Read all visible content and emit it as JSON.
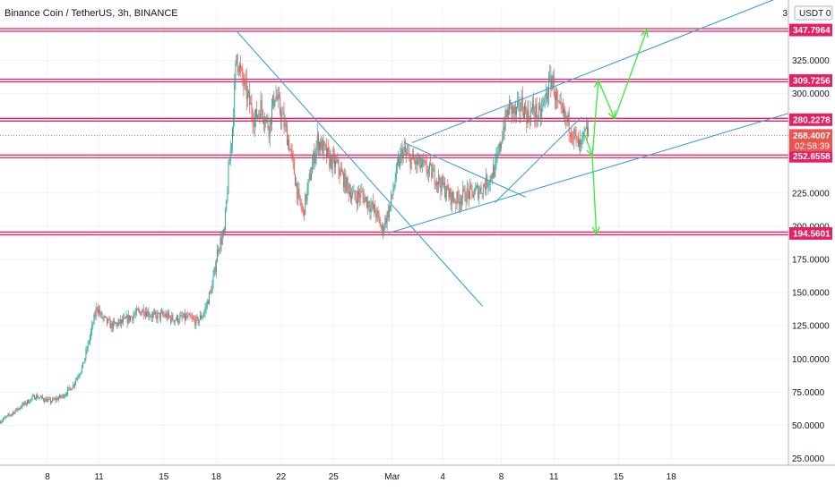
{
  "header": {
    "title": "Binance Coin / TetherUS, 3h, BINANCE",
    "currency": "USDT",
    "currency_sep": "0",
    "corner_tick": "3"
  },
  "colors": {
    "bull": "#26a69a",
    "bear": "#ef5350",
    "level": "#e91e63",
    "trend": "#3ca1d8",
    "projection": "#33ee33",
    "price_label": "#ef5350",
    "grid": "#f0f3fa",
    "axis": "#b2b5be"
  },
  "chart_data": {
    "type": "candlestick",
    "title": "Binance Coin / TetherUS, 3h, BINANCE",
    "ylim": [
      20,
      365
    ],
    "y_ticks": [
      "325.0000",
      "300.0000",
      "225.0000",
      "200.0000",
      "175.0000",
      "150.0000",
      "125.0000",
      "100.0000",
      "75.0000",
      "50.0000",
      "25.0000"
    ],
    "y_tick_values": [
      325,
      300,
      225,
      200,
      175,
      150,
      125,
      100,
      75,
      50,
      25
    ],
    "x_ticks": [
      "8",
      "11",
      "15",
      "18",
      "22",
      "25",
      "Mar",
      "4",
      "8",
      "11",
      "15",
      "18"
    ],
    "x_tick_index": [
      47,
      98,
      162,
      214,
      278,
      330,
      388,
      438,
      496,
      548,
      612,
      664
    ],
    "x_total_bars": 780,
    "last_price": "268.4007",
    "countdown": "02:58:39",
    "levels": [
      {
        "value": 347.7964,
        "label": "347.7964"
      },
      {
        "value": 309.7256,
        "label": "309.7256"
      },
      {
        "value": 280.2278,
        "label": "280.2278"
      },
      {
        "value": 252.6558,
        "label": "252.6558"
      },
      {
        "value": 194.5601,
        "label": "194.5601"
      }
    ],
    "anchors": [
      [
        0,
        53
      ],
      [
        10,
        58
      ],
      [
        22,
        65
      ],
      [
        35,
        72
      ],
      [
        50,
        68
      ],
      [
        62,
        72
      ],
      [
        72,
        80
      ],
      [
        82,
        95
      ],
      [
        90,
        120
      ],
      [
        96,
        140
      ],
      [
        100,
        132
      ],
      [
        110,
        125
      ],
      [
        122,
        128
      ],
      [
        132,
        133
      ],
      [
        142,
        137
      ],
      [
        152,
        132
      ],
      [
        162,
        133
      ],
      [
        172,
        130
      ],
      [
        185,
        131
      ],
      [
        195,
        128
      ],
      [
        202,
        135
      ],
      [
        210,
        155
      ],
      [
        216,
        185
      ],
      [
        222,
        195
      ],
      [
        226,
        240
      ],
      [
        230,
        275
      ],
      [
        234,
        330
      ],
      [
        238,
        315
      ],
      [
        244,
        300
      ],
      [
        252,
        280
      ],
      [
        258,
        290
      ],
      [
        266,
        275
      ],
      [
        272,
        300
      ],
      [
        280,
        280
      ],
      [
        286,
        262
      ],
      [
        290,
        245
      ],
      [
        296,
        218
      ],
      [
        300,
        210
      ],
      [
        306,
        235
      ],
      [
        314,
        265
      ],
      [
        320,
        258
      ],
      [
        326,
        250
      ],
      [
        334,
        245
      ],
      [
        342,
        232
      ],
      [
        350,
        222
      ],
      [
        358,
        224
      ],
      [
        366,
        216
      ],
      [
        372,
        210
      ],
      [
        378,
        197
      ],
      [
        386,
        215
      ],
      [
        392,
        240
      ],
      [
        398,
        257
      ],
      [
        406,
        250
      ],
      [
        414,
        247
      ],
      [
        422,
        243
      ],
      [
        430,
        238
      ],
      [
        438,
        230
      ],
      [
        446,
        222
      ],
      [
        452,
        220
      ],
      [
        460,
        224
      ],
      [
        468,
        225
      ],
      [
        476,
        228
      ],
      [
        484,
        236
      ],
      [
        490,
        244
      ],
      [
        494,
        257
      ],
      [
        498,
        275
      ],
      [
        504,
        290
      ],
      [
        510,
        284
      ],
      [
        516,
        292
      ],
      [
        522,
        283
      ],
      [
        528,
        288
      ],
      [
        534,
        282
      ],
      [
        540,
        298
      ],
      [
        546,
        312
      ],
      [
        552,
        288
      ],
      [
        558,
        282
      ],
      [
        564,
        276
      ],
      [
        570,
        264
      ],
      [
        574,
        258
      ],
      [
        578,
        268
      ],
      [
        582,
        272
      ]
    ]
  }
}
